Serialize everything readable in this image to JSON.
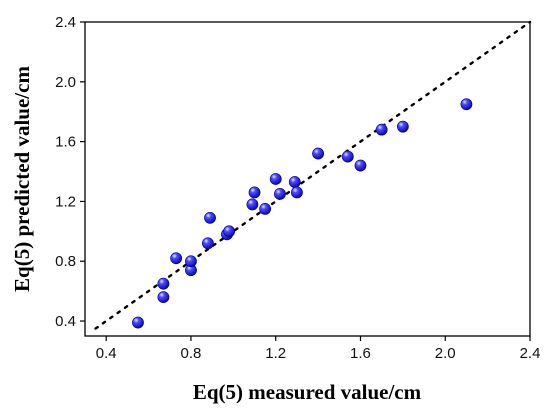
{
  "chart_data": {
    "type": "scatter",
    "title": "",
    "xlabel": "Eq(5) measured value/cm",
    "ylabel": "Eq(5) predicted value/cm",
    "xlim": [
      0.3,
      2.4
    ],
    "ylim": [
      0.3,
      2.4
    ],
    "x_ticks": [
      "0.4",
      "0.8",
      "1.2",
      "1.6",
      "2.0",
      "2.4"
    ],
    "y_ticks": [
      "0.4",
      "0.8",
      "1.2",
      "1.6",
      "2.0",
      "2.4"
    ],
    "grid": false,
    "legend": "none",
    "marker_color": "#1a1aff",
    "reference_line": {
      "style": "dotted",
      "from": [
        0.35,
        0.35
      ],
      "to": [
        2.4,
        2.4
      ]
    },
    "series": [
      {
        "x": [
          0.55,
          0.67,
          0.67,
          0.73,
          0.8,
          0.8,
          0.88,
          0.89,
          0.97,
          0.98,
          1.09,
          1.1,
          1.15,
          1.2,
          1.22,
          1.29,
          1.3,
          1.4,
          1.54,
          1.6,
          1.7,
          1.8,
          2.1
        ],
        "y": [
          0.39,
          0.56,
          0.65,
          0.82,
          0.74,
          0.8,
          0.92,
          1.09,
          0.98,
          1.0,
          1.18,
          1.26,
          1.15,
          1.35,
          1.25,
          1.33,
          1.26,
          1.52,
          1.5,
          1.44,
          1.68,
          1.7,
          1.85
        ]
      }
    ]
  }
}
